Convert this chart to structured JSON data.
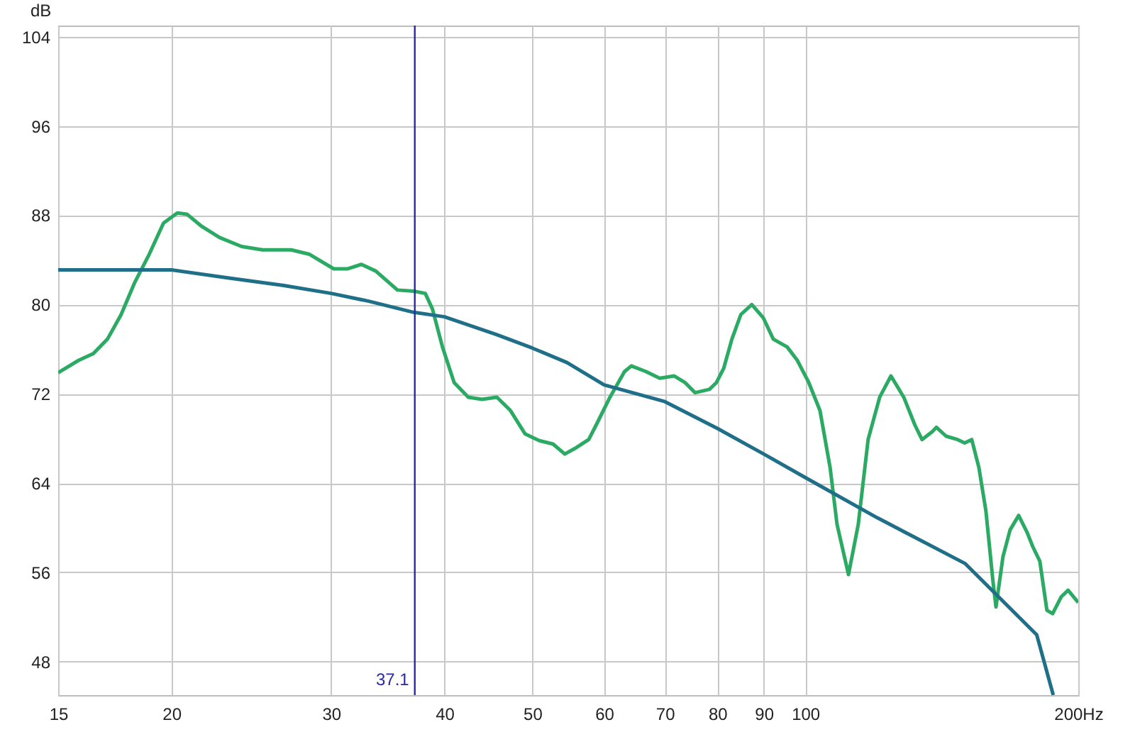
{
  "chart_data": {
    "type": "line",
    "ylabel": "dB",
    "log": "x",
    "xlim": [
      15,
      200
    ],
    "ylim": [
      45,
      105
    ],
    "xticks": [
      15,
      20,
      30,
      40,
      50,
      60,
      70,
      80,
      90,
      100,
      {
        "value": 200,
        "label": "200Hz"
      }
    ],
    "yticks": [
      48,
      56,
      64,
      72,
      80,
      88,
      96,
      104
    ],
    "grid": true,
    "marker": "none",
    "line_style": "solid",
    "ref_lines": [
      {
        "axis": "x",
        "value": 37.1,
        "label": "37.1",
        "color": "#2a2aa0"
      }
    ],
    "series": [
      {
        "color": "#2aaa62",
        "x": [
          15,
          15.8,
          16.4,
          17,
          17.6,
          18.2,
          18.9,
          19.6,
          20.3,
          20.8,
          21.6,
          22.6,
          23.9,
          25.2,
          27.1,
          28.4,
          30.2,
          31.3,
          32.4,
          33.6,
          35.5,
          37,
          38.1,
          38.8,
          39.8,
          41,
          42.5,
          44,
          45.7,
          47.3,
          49.1,
          50.9,
          52.7,
          54.3,
          55.7,
          57.7,
          58.8,
          60.9,
          63.2,
          64.3,
          66.7,
          69.1,
          71.7,
          73.7,
          75.6,
          78.4,
          79.8,
          81.3,
          83,
          84.9,
          87.3,
          89.9,
          92.2,
          95.5,
          98,
          100.9,
          103.8,
          106.5,
          108.4,
          111.6,
          114.4,
          117.3,
          120.8,
          124.3,
          128.4,
          132.1,
          134.5,
          138,
          139.5,
          143,
          147.2,
          149.9,
          152.6,
          155.4,
          158.2,
          161.1,
          162.3,
          165.2,
          168.2,
          171.9,
          175.6,
          178.2,
          181.4,
          184.7,
          187.4,
          191.5,
          194.9,
          200
        ],
        "values": [
          73.9,
          75,
          75.6,
          76.9,
          79.1,
          81.9,
          84.5,
          87.3,
          88.2,
          88.1,
          87,
          86,
          85.2,
          84.9,
          84.9,
          84.5,
          83.2,
          83.2,
          83.6,
          83,
          81.3,
          81.2,
          81,
          79.6,
          76.2,
          73,
          71.7,
          71.5,
          71.7,
          70.5,
          68.4,
          67.8,
          67.5,
          66.6,
          67.1,
          67.9,
          69.2,
          71.7,
          74,
          74.5,
          74,
          73.4,
          73.6,
          73,
          72.1,
          72.4,
          73,
          74.3,
          76.9,
          79.1,
          80,
          78.8,
          76.9,
          76.2,
          75,
          73,
          70.5,
          65.4,
          60.3,
          55.8,
          60.3,
          67.9,
          71.7,
          73.6,
          71.7,
          69.2,
          67.9,
          68.6,
          69,
          68.2,
          67.9,
          67.6,
          67.9,
          65.4,
          61.5,
          55.1,
          52.9,
          57.4,
          59.8,
          61.1,
          59.6,
          58.3,
          57,
          52.6,
          52.3,
          53.8,
          54.4,
          53.3
        ]
      },
      {
        "color": "#1f6f88",
        "x": [
          15,
          20,
          23,
          26.6,
          30,
          33,
          37,
          40,
          45.7,
          50,
          54.6,
          60,
          70,
          80,
          90,
          100,
          120,
          150,
          180,
          187.7
        ],
        "values": [
          83.1,
          83.1,
          82.4,
          81.7,
          81,
          80.3,
          79.3,
          78.9,
          77.3,
          76.1,
          74.8,
          72.8,
          71.3,
          68.9,
          66.6,
          64.5,
          60.9,
          56.8,
          50.4,
          45
        ]
      }
    ]
  }
}
